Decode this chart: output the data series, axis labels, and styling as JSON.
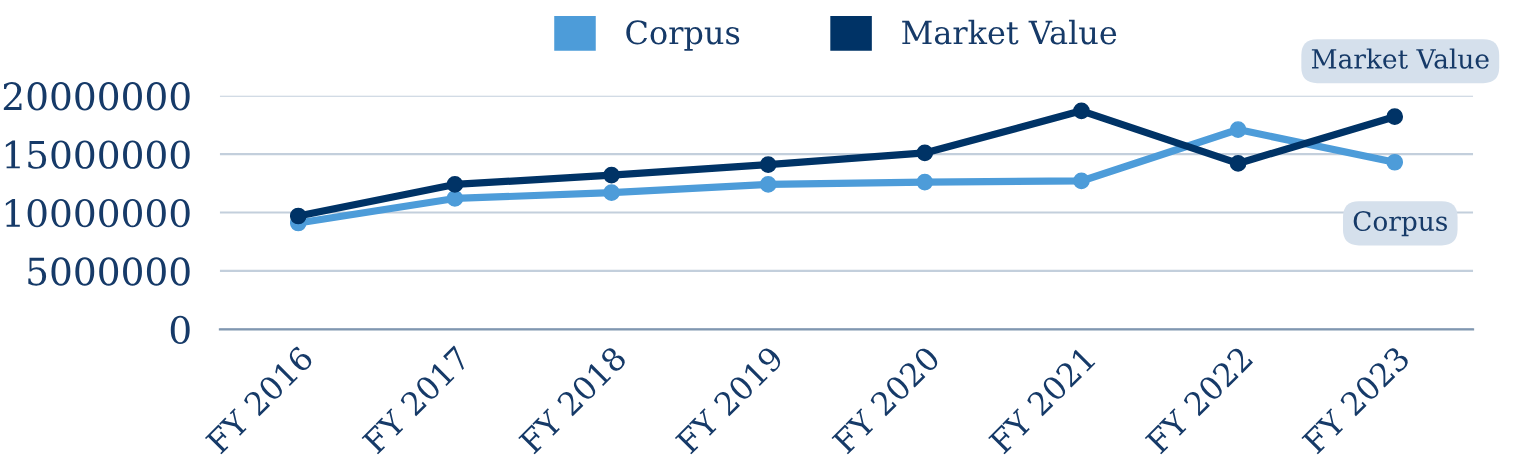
{
  "chart_data": {
    "type": "line",
    "categories": [
      "FY 2016",
      "FY 2017",
      "FY 2018",
      "FY 2019",
      "FY 2020",
      "FY 2021",
      "FY 2022",
      "FY 2023"
    ],
    "series": [
      {
        "name": "Corpus",
        "color": "#4d9cd9",
        "values": [
          9100000,
          11200000,
          11700000,
          12400000,
          12600000,
          12700000,
          17100000,
          14300000
        ]
      },
      {
        "name": "Market Value",
        "color": "#003366",
        "values": [
          9700000,
          12400000,
          13200000,
          14100000,
          15100000,
          18700000,
          14200000,
          18200000
        ]
      }
    ],
    "ylim": [
      0,
      20000000
    ],
    "yticks": [
      0,
      5000000,
      10000000,
      15000000,
      20000000
    ],
    "grid": "y",
    "legend": "top",
    "marker": "circle",
    "line_style": "solid",
    "annotations": [
      {
        "text": "Market Value",
        "x": "FY 2023",
        "y": 18200000
      },
      {
        "text": "Corpus",
        "x": "FY 2023",
        "y": 14300000
      }
    ]
  }
}
